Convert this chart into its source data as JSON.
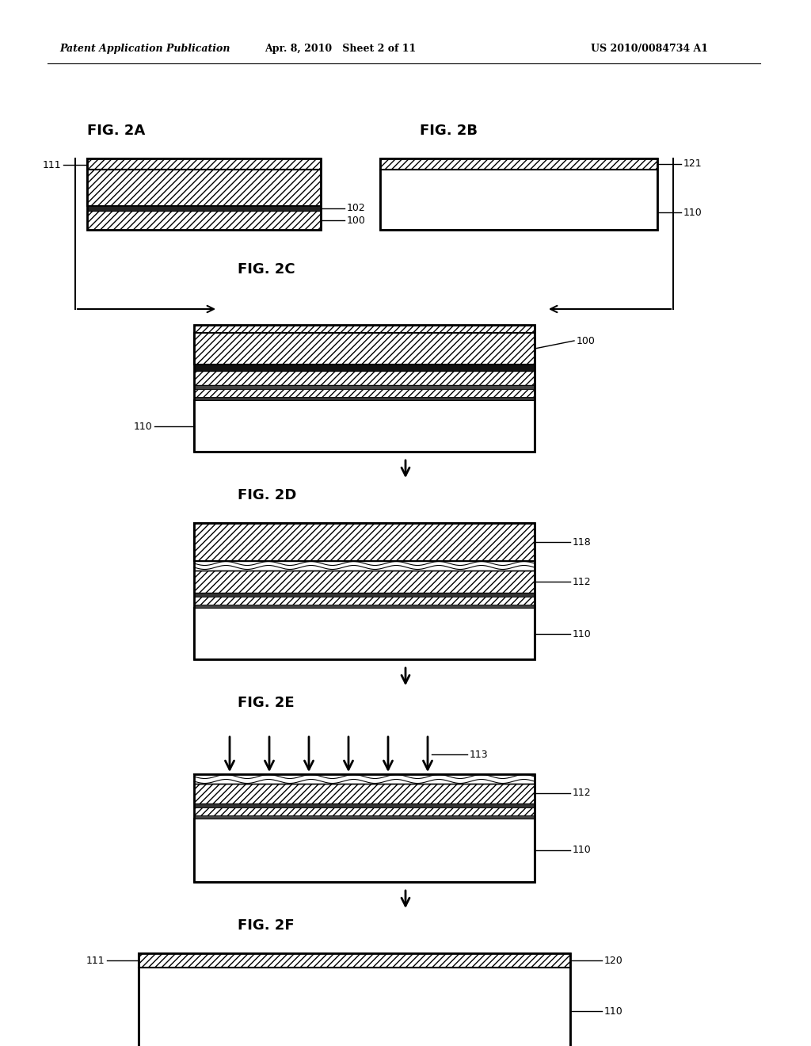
{
  "header_left": "Patent Application Publication",
  "header_mid": "Apr. 8, 2010   Sheet 2 of 11",
  "header_right": "US 2010/0084734 A1",
  "bg_color": "#ffffff"
}
